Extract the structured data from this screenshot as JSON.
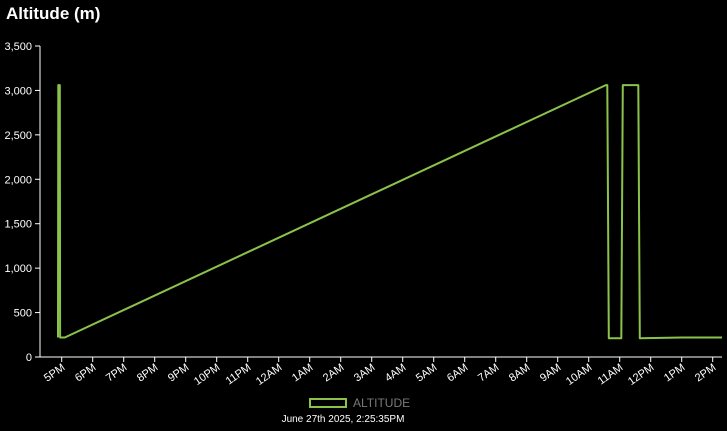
{
  "chart_data": {
    "type": "line",
    "title": "Altitude (m)",
    "xlabel": "",
    "ylabel": "",
    "ylim": [
      0,
      3500
    ],
    "y_ticks": [
      0,
      500,
      1000,
      1500,
      2000,
      2500,
      3000,
      3500
    ],
    "y_tick_labels": [
      "0",
      "500",
      "1,000",
      "1,500",
      "2,000",
      "2,500",
      "3,000",
      "3,500"
    ],
    "x_tick_labels": [
      "5PM",
      "6PM",
      "7PM",
      "8PM",
      "9PM",
      "10PM",
      "11PM",
      "12AM",
      "1AM",
      "2AM",
      "3AM",
      "4AM",
      "5AM",
      "6AM",
      "7AM",
      "8AM",
      "9AM",
      "10AM",
      "11AM",
      "12PM",
      "1PM",
      "2PM"
    ],
    "x_unit": "hours after 5PM",
    "xlim": [
      -0.7,
      21.3
    ],
    "grid": false,
    "legend_position": "bottom",
    "series": [
      {
        "name": "ALTITUDE",
        "color": "#8bc34a",
        "x": [
          -0.12,
          -0.11,
          -0.06,
          -0.05,
          0.1,
          17.55,
          17.6,
          17.65,
          18.05,
          18.1,
          18.55,
          18.6,
          18.65,
          20.0,
          20.5,
          21.3
        ],
        "y": [
          220,
          3060,
          3060,
          220,
          220,
          3060,
          3060,
          210,
          210,
          3060,
          3060,
          3060,
          210,
          220,
          220,
          220
        ]
      }
    ]
  },
  "legend": {
    "label": "ALTITUDE"
  },
  "timestamp": "June 27th 2025, 2:25:35PM"
}
